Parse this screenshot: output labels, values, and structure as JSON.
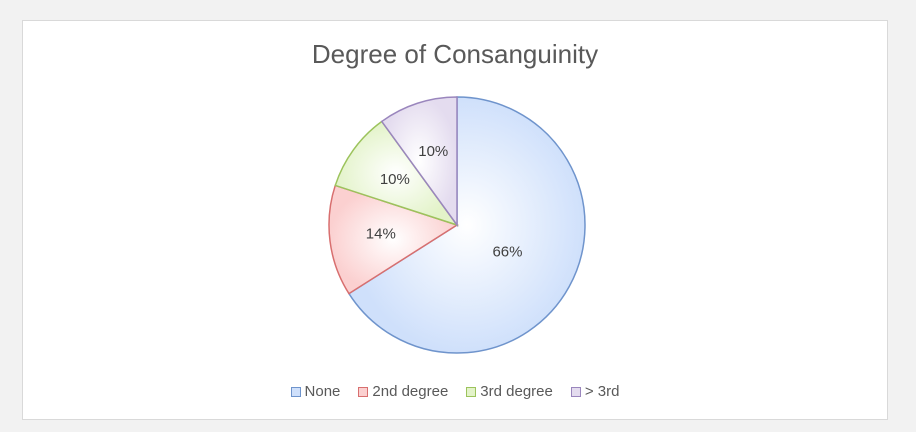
{
  "chart_data": {
    "type": "pie",
    "title": "Degree of Consanguinity",
    "categories": [
      "None",
      "2nd degree",
      "3rd degree",
      "> 3rd"
    ],
    "values": [
      66,
      14,
      10,
      10
    ],
    "data_labels": [
      "66%",
      "14%",
      "10%",
      "10%"
    ],
    "legend_position": "bottom",
    "colors": {
      "fills": [
        "#cfe0fb",
        "#fbd0d0",
        "#e3f3c9",
        "#e4dcef"
      ],
      "strokes": [
        "#6f94cc",
        "#d86f6f",
        "#9cc35c",
        "#9a86bd"
      ]
    }
  }
}
